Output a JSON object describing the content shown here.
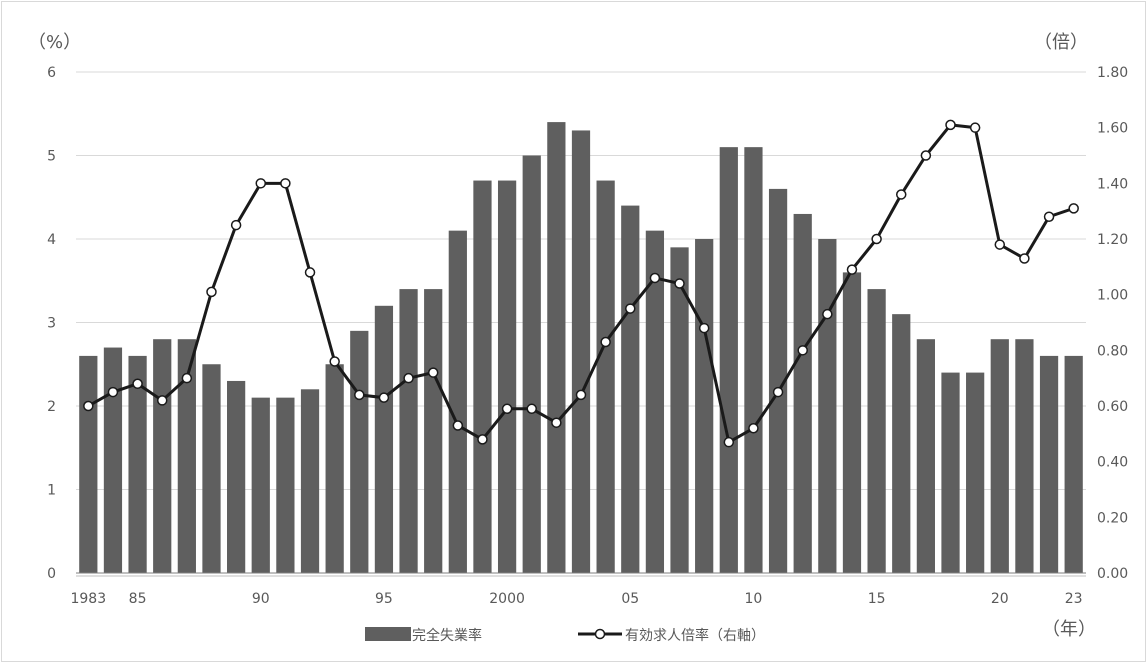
{
  "chart_data": {
    "type": "bar+line",
    "left_axis_unit": "（%）",
    "right_axis_unit": "（倍）",
    "x_axis_unit": "（年）",
    "years": [
      1983,
      1984,
      1985,
      1986,
      1987,
      1988,
      1989,
      1990,
      1991,
      1992,
      1993,
      1994,
      1995,
      1996,
      1997,
      1998,
      1999,
      2000,
      2001,
      2002,
      2003,
      2004,
      2005,
      2006,
      2007,
      2008,
      2009,
      2010,
      2011,
      2012,
      2013,
      2014,
      2015,
      2016,
      2017,
      2018,
      2019,
      2020,
      2021,
      2022,
      2023
    ],
    "x_tick_labels": [
      {
        "year": 1983,
        "label": "1983"
      },
      {
        "year": 1985,
        "label": "85"
      },
      {
        "year": 1990,
        "label": "90"
      },
      {
        "year": 1995,
        "label": "95"
      },
      {
        "year": 2000,
        "label": "2000"
      },
      {
        "year": 2005,
        "label": "05"
      },
      {
        "year": 2010,
        "label": "10"
      },
      {
        "year": 2015,
        "label": "15"
      },
      {
        "year": 2020,
        "label": "20"
      },
      {
        "year": 2023,
        "label": "23"
      }
    ],
    "left_ticks": [
      "0",
      "1",
      "2",
      "3",
      "4",
      "5",
      "6"
    ],
    "right_ticks": [
      "0.00",
      "0.20",
      "0.40",
      "0.60",
      "0.80",
      "1.00",
      "1.20",
      "1.40",
      "1.60",
      "1.80"
    ],
    "ylim_left": [
      0,
      6
    ],
    "ylim_right": [
      0,
      1.8
    ],
    "grid": true,
    "legend_position": "bottom",
    "series": [
      {
        "name": "完全失業率",
        "type": "bar",
        "axis": "left",
        "color": "#5f5f5f",
        "values": [
          2.6,
          2.7,
          2.6,
          2.8,
          2.8,
          2.5,
          2.3,
          2.1,
          2.1,
          2.2,
          2.5,
          2.9,
          3.2,
          3.4,
          3.4,
          4.1,
          4.7,
          4.7,
          5.0,
          5.4,
          5.3,
          4.7,
          4.4,
          4.1,
          3.9,
          4.0,
          5.1,
          5.1,
          4.6,
          4.3,
          4.0,
          3.6,
          3.4,
          3.1,
          2.8,
          2.4,
          2.4,
          2.8,
          2.8,
          2.6,
          2.6
        ]
      },
      {
        "name": "有効求人倍率（右軸）",
        "type": "line",
        "axis": "right",
        "color": "#1a1a1a",
        "values": [
          0.6,
          0.65,
          0.68,
          0.62,
          0.7,
          1.01,
          1.25,
          1.4,
          1.4,
          1.08,
          0.76,
          0.64,
          0.63,
          0.7,
          0.72,
          0.53,
          0.48,
          0.59,
          0.59,
          0.54,
          0.64,
          0.83,
          0.95,
          1.06,
          1.04,
          0.88,
          0.47,
          0.52,
          0.65,
          0.8,
          0.93,
          1.09,
          1.2,
          1.36,
          1.5,
          1.61,
          1.6,
          1.18,
          1.13,
          1.28,
          1.31
        ]
      }
    ]
  }
}
